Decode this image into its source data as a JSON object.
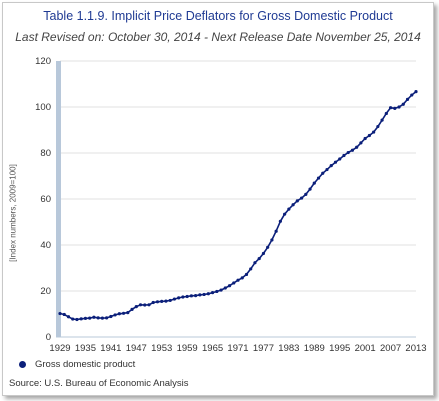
{
  "header": {
    "title": "Table 1.1.9. Implicit Price Deflators for Gross Domestic Product",
    "subtitle": "Last Revised on: October 30, 2014 - Next Release Date November 25, 2014"
  },
  "footer": {
    "source": "Source: U.S. Bureau of Economic  Analysis"
  },
  "colors": {
    "series": "#0b1f7a",
    "axis_band": "#b8c8da",
    "grid": "#e2e2e2"
  },
  "chart_data": {
    "type": "line",
    "title": "Table 1.1.9. Implicit Price Deflators for Gross Domestic Product",
    "subtitle": "Last Revised on: October 30, 2014 - Next Release Date November 25, 2014",
    "xlabel": "",
    "ylabel": "[Index numbers, 2009=100]",
    "xlim": [
      1929,
      2013
    ],
    "ylim": [
      0,
      120
    ],
    "y_ticks": [
      0,
      20,
      40,
      60,
      80,
      100,
      120
    ],
    "x_ticks": [
      1929,
      1935,
      1941,
      1947,
      1953,
      1959,
      1965,
      1971,
      1977,
      1983,
      1989,
      1995,
      2001,
      2007,
      2013
    ],
    "grid": true,
    "legend_position": "bottom-left",
    "markers": true,
    "series": [
      {
        "name": "Gross domestic product",
        "x": [
          1929,
          1930,
          1931,
          1932,
          1933,
          1934,
          1935,
          1936,
          1937,
          1938,
          1939,
          1940,
          1941,
          1942,
          1943,
          1944,
          1945,
          1946,
          1947,
          1948,
          1949,
          1950,
          1951,
          1952,
          1953,
          1954,
          1955,
          1956,
          1957,
          1958,
          1959,
          1960,
          1961,
          1962,
          1963,
          1964,
          1965,
          1966,
          1967,
          1968,
          1969,
          1970,
          1971,
          1972,
          1973,
          1974,
          1975,
          1976,
          1977,
          1978,
          1979,
          1980,
          1981,
          1982,
          1983,
          1984,
          1985,
          1986,
          1987,
          1988,
          1989,
          1990,
          1991,
          1992,
          1993,
          1994,
          1995,
          1996,
          1997,
          1998,
          1999,
          2000,
          2001,
          2002,
          2003,
          2004,
          2005,
          2006,
          2007,
          2008,
          2009,
          2010,
          2011,
          2012,
          2013
        ],
        "values": [
          10.2,
          9.8,
          8.8,
          7.8,
          7.6,
          7.9,
          8.1,
          8.2,
          8.6,
          8.3,
          8.2,
          8.3,
          8.9,
          9.6,
          10.1,
          10.3,
          10.6,
          12.0,
          13.2,
          14.0,
          13.9,
          14.0,
          15.0,
          15.3,
          15.5,
          15.6,
          15.9,
          16.5,
          17.0,
          17.4,
          17.6,
          17.9,
          18.0,
          18.3,
          18.5,
          18.8,
          19.3,
          19.8,
          20.4,
          21.3,
          22.3,
          23.5,
          24.7,
          25.7,
          27.2,
          29.6,
          32.3,
          34.1,
          36.3,
          39.0,
          42.2,
          46.0,
          50.3,
          53.4,
          55.6,
          57.5,
          59.2,
          60.4,
          62.0,
          64.3,
          66.9,
          69.1,
          71.2,
          72.8,
          74.5,
          76.0,
          77.4,
          78.9,
          80.2,
          81.2,
          82.5,
          84.4,
          86.3,
          87.6,
          89.1,
          91.5,
          94.3,
          97.2,
          99.7,
          99.4,
          100.0,
          101.2,
          103.3,
          105.2,
          106.7
        ]
      }
    ]
  }
}
